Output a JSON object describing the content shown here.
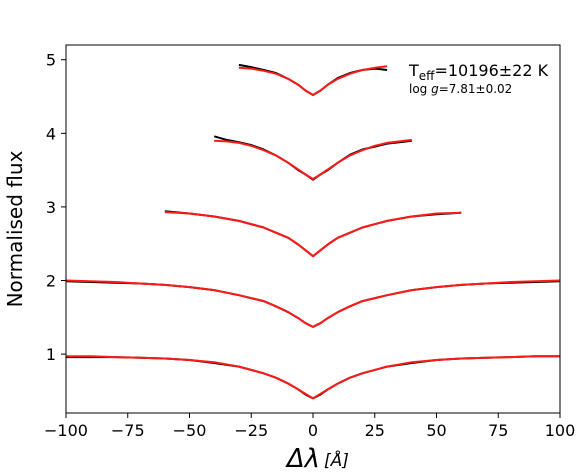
{
  "chart_data": {
    "type": "line",
    "title": "",
    "xlabel": {
      "main": "Δλ",
      "unit": "[Å]"
    },
    "ylabel": "Normalised flux",
    "xlim": [
      -100,
      100
    ],
    "ylim": [
      0.2,
      5.2
    ],
    "xticks": [
      -100,
      -75,
      -50,
      -25,
      0,
      25,
      50,
      75,
      100
    ],
    "yticks": [
      1,
      2,
      3,
      4,
      5
    ],
    "grid": false,
    "legend": "none",
    "annotation": {
      "teff": "T_eff=10196±22 K",
      "logg": "log g=7.81±0.02"
    },
    "colors": {
      "observed": "#000000",
      "model": "#ff1a1a"
    },
    "series": [
      {
        "x": [
          -100,
          -90,
          -80,
          -70,
          -60,
          -50,
          -40,
          -30,
          -20,
          -15,
          -10,
          -6,
          -3,
          0,
          3,
          6,
          10,
          15,
          20,
          30,
          40,
          50,
          60,
          70,
          80,
          90,
          100
        ],
        "observed": [
          0.96,
          0.96,
          0.96,
          0.95,
          0.94,
          0.92,
          0.88,
          0.83,
          0.74,
          0.68,
          0.6,
          0.52,
          0.45,
          0.4,
          0.45,
          0.52,
          0.6,
          0.68,
          0.74,
          0.83,
          0.88,
          0.92,
          0.94,
          0.95,
          0.96,
          0.97,
          0.97
        ],
        "model": [
          0.97,
          0.97,
          0.96,
          0.95,
          0.94,
          0.92,
          0.89,
          0.83,
          0.74,
          0.68,
          0.6,
          0.52,
          0.46,
          0.4,
          0.46,
          0.52,
          0.6,
          0.68,
          0.74,
          0.83,
          0.89,
          0.92,
          0.94,
          0.95,
          0.96,
          0.97,
          0.97
        ]
      },
      {
        "x": [
          -100,
          -90,
          -80,
          -70,
          -60,
          -50,
          -40,
          -30,
          -20,
          -15,
          -10,
          -6,
          -3,
          0,
          3,
          6,
          10,
          15,
          20,
          30,
          40,
          50,
          60,
          70,
          80,
          90,
          100
        ],
        "observed": [
          1.99,
          1.98,
          1.97,
          1.96,
          1.94,
          1.91,
          1.87,
          1.8,
          1.72,
          1.65,
          1.57,
          1.49,
          1.42,
          1.37,
          1.42,
          1.49,
          1.57,
          1.65,
          1.72,
          1.8,
          1.87,
          1.91,
          1.94,
          1.96,
          1.97,
          1.98,
          1.99
        ],
        "model": [
          2.0,
          1.99,
          1.98,
          1.96,
          1.94,
          1.91,
          1.87,
          1.8,
          1.72,
          1.65,
          1.57,
          1.49,
          1.42,
          1.37,
          1.42,
          1.49,
          1.57,
          1.65,
          1.72,
          1.8,
          1.87,
          1.91,
          1.94,
          1.96,
          1.98,
          1.99,
          2.0
        ]
      },
      {
        "x": [
          -60,
          -50,
          -40,
          -30,
          -20,
          -15,
          -10,
          -6,
          -3,
          0,
          3,
          6,
          10,
          15,
          20,
          30,
          40,
          50,
          60
        ],
        "observed": [
          2.94,
          2.91,
          2.87,
          2.81,
          2.72,
          2.65,
          2.58,
          2.49,
          2.41,
          2.33,
          2.41,
          2.49,
          2.58,
          2.65,
          2.72,
          2.81,
          2.87,
          2.9,
          2.92
        ],
        "model": [
          2.93,
          2.91,
          2.87,
          2.81,
          2.72,
          2.65,
          2.58,
          2.49,
          2.41,
          2.33,
          2.41,
          2.49,
          2.58,
          2.65,
          2.72,
          2.81,
          2.87,
          2.91,
          2.92
        ]
      },
      {
        "x": [
          -40,
          -35,
          -30,
          -25,
          -20,
          -15,
          -10,
          -6,
          -3,
          0,
          3,
          6,
          10,
          15,
          20,
          25,
          30,
          35,
          40
        ],
        "observed": [
          3.96,
          3.91,
          3.88,
          3.84,
          3.78,
          3.7,
          3.6,
          3.5,
          3.44,
          3.37,
          3.44,
          3.5,
          3.6,
          3.71,
          3.78,
          3.82,
          3.86,
          3.88,
          3.9
        ],
        "model": [
          3.9,
          3.89,
          3.87,
          3.83,
          3.77,
          3.7,
          3.6,
          3.51,
          3.44,
          3.38,
          3.44,
          3.51,
          3.6,
          3.7,
          3.77,
          3.83,
          3.87,
          3.89,
          3.91
        ]
      },
      {
        "x": [
          -30,
          -25,
          -20,
          -15,
          -10,
          -6,
          -3,
          0,
          3,
          6,
          10,
          15,
          20,
          25,
          30
        ],
        "observed": [
          4.93,
          4.9,
          4.86,
          4.82,
          4.74,
          4.66,
          4.58,
          4.52,
          4.58,
          4.66,
          4.75,
          4.82,
          4.86,
          4.88,
          4.86
        ],
        "model": [
          4.89,
          4.88,
          4.85,
          4.81,
          4.74,
          4.66,
          4.58,
          4.52,
          4.58,
          4.66,
          4.74,
          4.81,
          4.86,
          4.89,
          4.91
        ]
      }
    ]
  }
}
